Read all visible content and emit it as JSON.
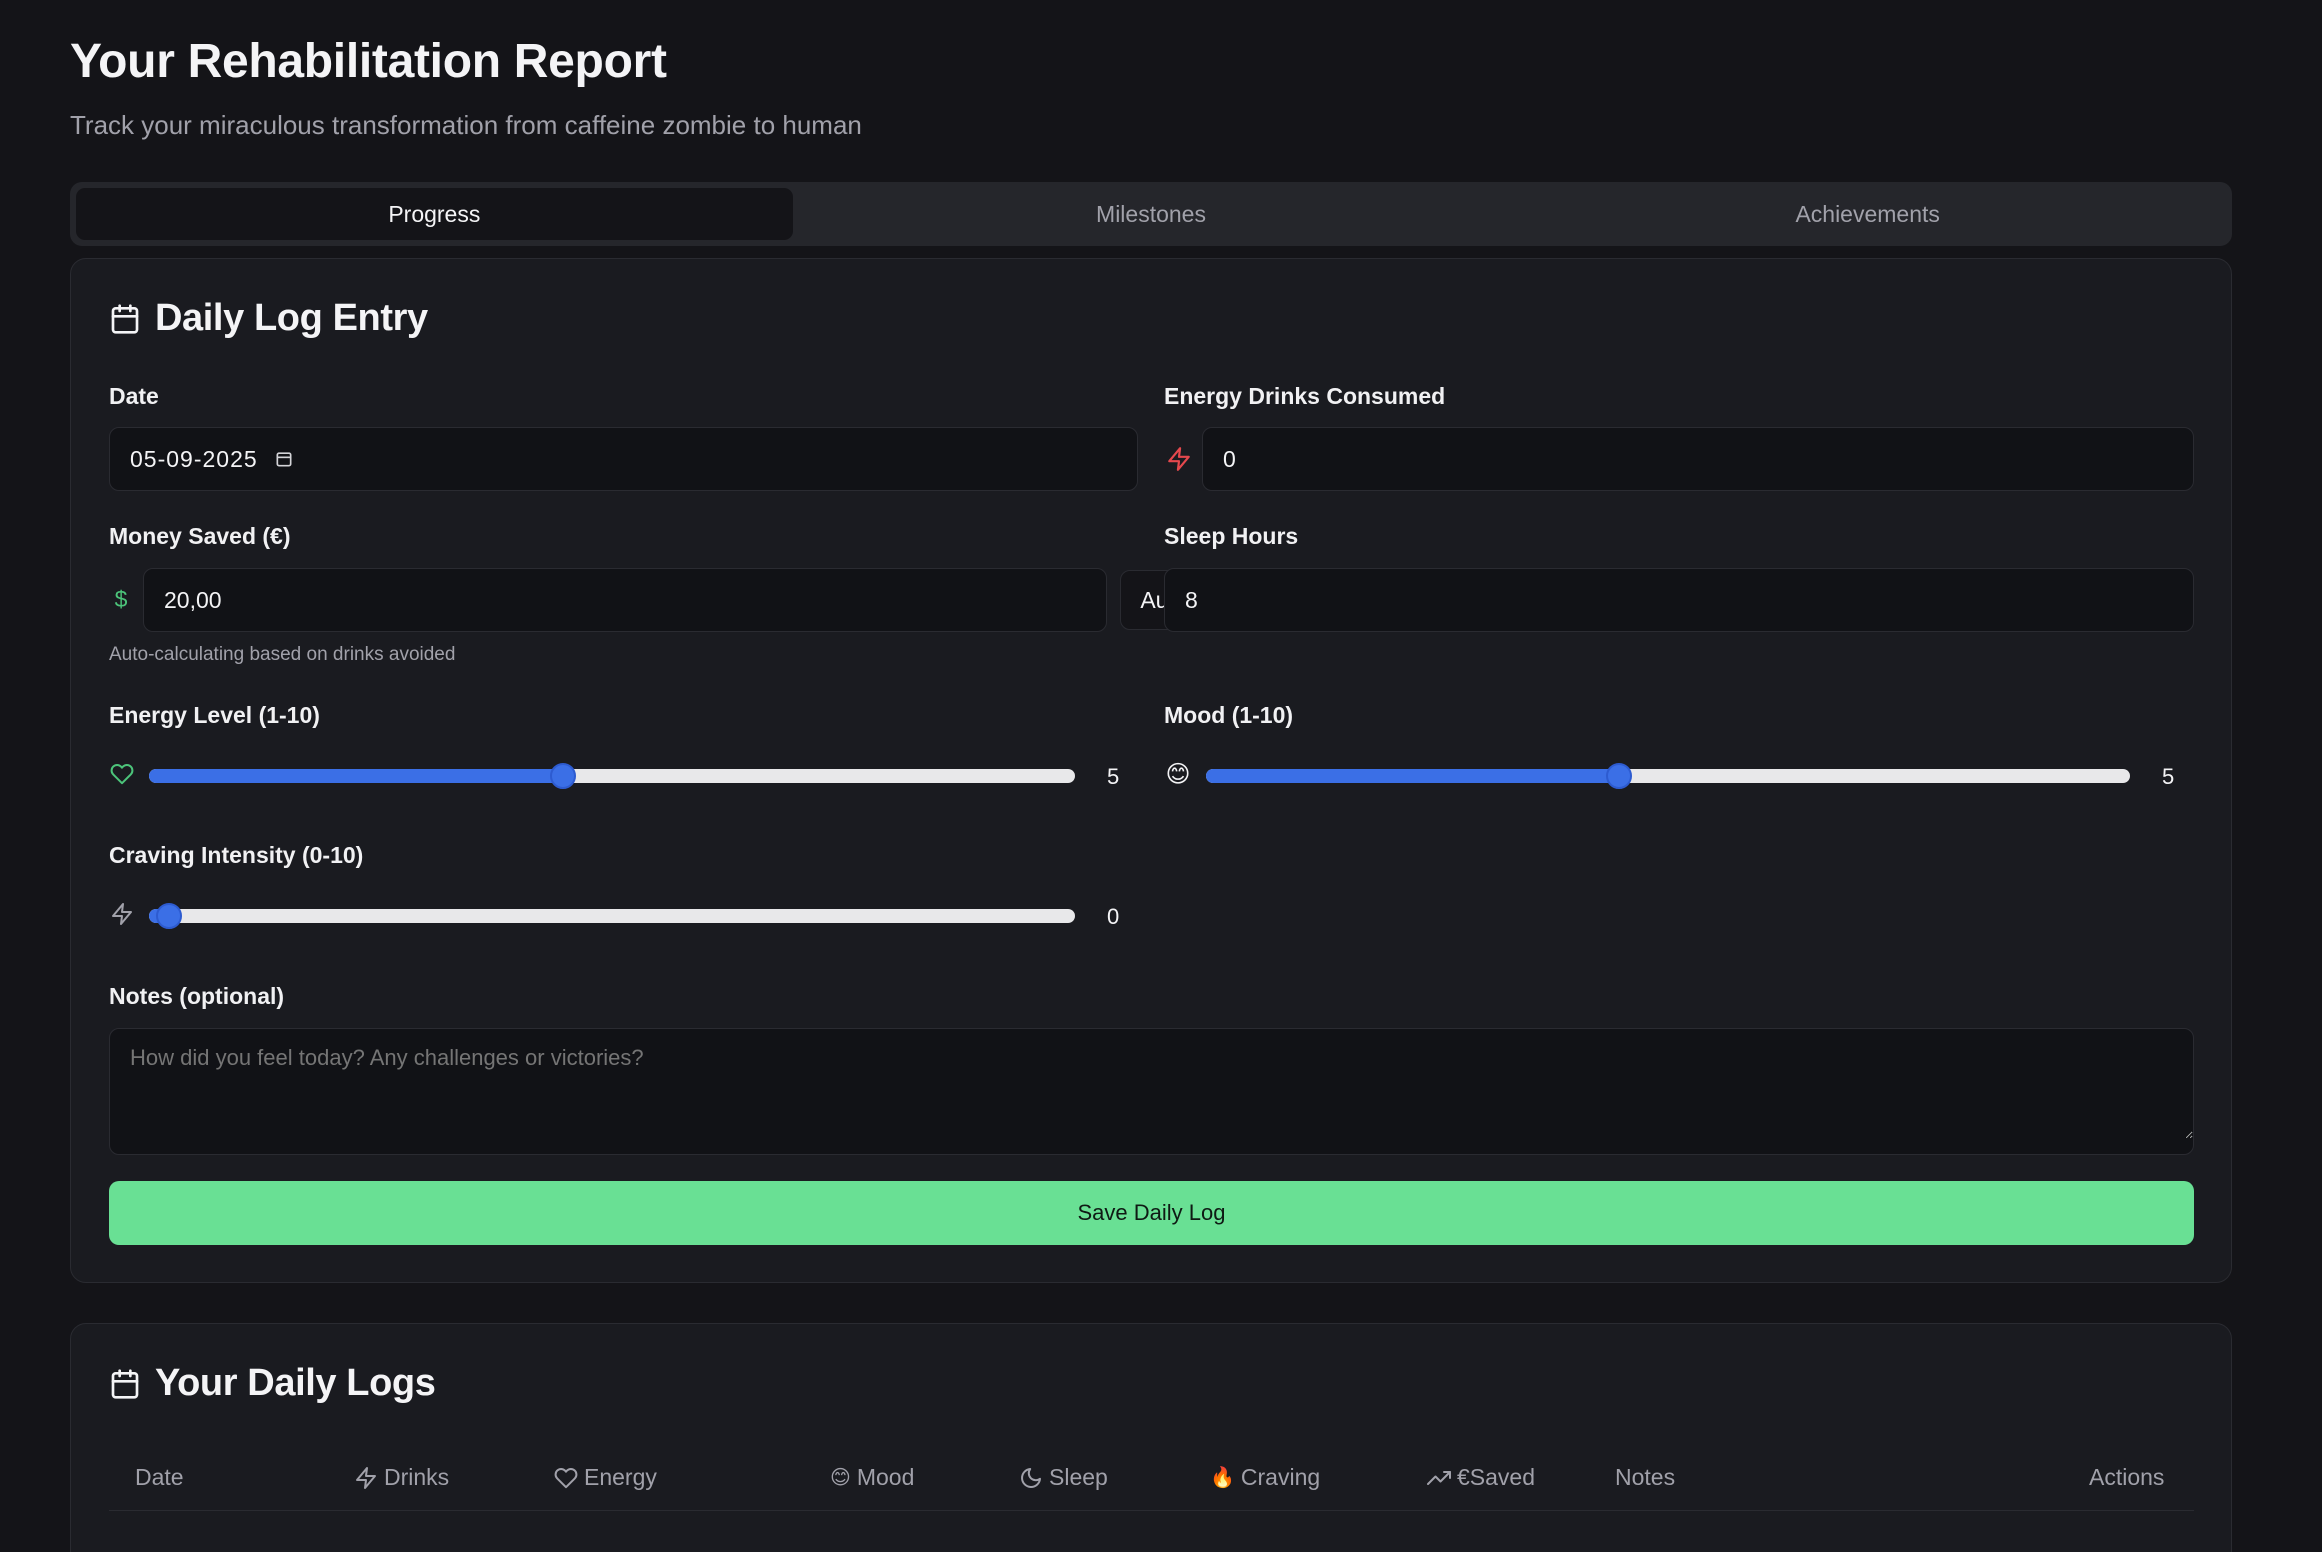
{
  "header": {
    "title": "Your Rehabilitation Report",
    "subtitle": "Track your miraculous transformation from caffeine zombie to human"
  },
  "tabs": [
    {
      "label": "Progress",
      "active": true
    },
    {
      "label": "Milestones",
      "active": false
    },
    {
      "label": "Achievements",
      "active": false
    }
  ],
  "daily_log": {
    "title": "Daily Log Entry",
    "date": {
      "label": "Date",
      "value": "05-09-2025"
    },
    "energy_drinks": {
      "label": "Energy Drinks Consumed",
      "value": "0"
    },
    "money_saved": {
      "label": "Money Saved (€)",
      "currency_symbol": "$",
      "value": "20,00",
      "auto_label": "Auto",
      "hint": "Auto-calculating based on drinks avoided"
    },
    "sleep_hours": {
      "label": "Sleep Hours",
      "value": "8"
    },
    "energy_level": {
      "label": "Energy Level (1-10)",
      "value": 5,
      "display": "5",
      "min": 1,
      "max": 10
    },
    "mood": {
      "label": "Mood (1-10)",
      "value": 5,
      "display": "5",
      "min": 1,
      "max": 10,
      "emoji": "😊"
    },
    "craving": {
      "label": "Craving Intensity (0-10)",
      "value": 0,
      "display": "0",
      "min": 0,
      "max": 10
    },
    "notes": {
      "label": "Notes (optional)",
      "placeholder": "How did you feel today? Any challenges or victories?"
    },
    "save_label": "Save Daily Log"
  },
  "logs": {
    "title": "Your Daily Logs",
    "columns": {
      "date": "Date",
      "drinks": "Drinks",
      "energy": "Energy",
      "mood": "Mood",
      "mood_emoji": "😊",
      "sleep": "Sleep",
      "craving": "Craving",
      "craving_emoji": "🔥",
      "saved": "€Saved",
      "notes": "Notes",
      "actions": "Actions"
    }
  },
  "colors": {
    "accent_blue": "#3b6fe6",
    "accent_green": "#69e094",
    "danger_red": "#e5484d",
    "icon_green": "#4cc47a"
  }
}
